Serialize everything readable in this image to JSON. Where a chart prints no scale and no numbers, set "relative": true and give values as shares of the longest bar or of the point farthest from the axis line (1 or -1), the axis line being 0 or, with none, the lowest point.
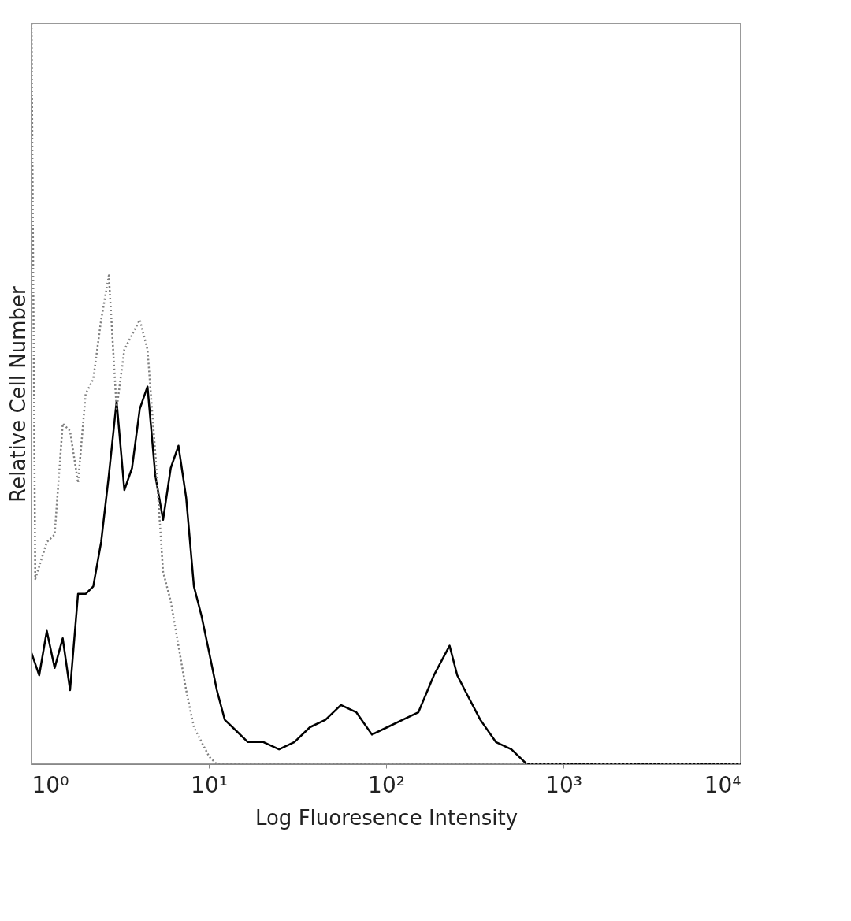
{
  "chart_data": {
    "type": "line",
    "relative": true,
    "xlabel": "Log Fluoresence Intensity",
    "ylabel": "Relative Cell Number",
    "log": "x",
    "xlim": [
      1,
      10000
    ],
    "xticks": [
      {
        "value": 1,
        "label": "10⁰"
      },
      {
        "value": 10,
        "label": "10¹"
      },
      {
        "value": 100,
        "label": "10²"
      },
      {
        "value": 1000,
        "label": "10³"
      },
      {
        "value": 10000,
        "label": "10⁴"
      }
    ],
    "grid": false,
    "marker": "none",
    "series": [
      {
        "color": "#000000",
        "line_style": "solid",
        "x": [
          1.0,
          1.105,
          1.22,
          1.35,
          1.5,
          1.65,
          1.83,
          2.02,
          2.23,
          2.47,
          2.73,
          3.02,
          3.34,
          3.69,
          4.08,
          4.51,
          4.99,
          5.52,
          6.1,
          6.74,
          7.45,
          8.24,
          9.1,
          10.06,
          11.1,
          12.3,
          13.6,
          16.6,
          20.3,
          24.9,
          30.4,
          37.2,
          45.5,
          55.6,
          68,
          83.2,
          101.7,
          124,
          152,
          186,
          228,
          252,
          278,
          340,
          416,
          509,
          622,
          688,
          1137,
          10000
        ],
        "values": [
          0.15,
          0.12,
          0.18,
          0.13,
          0.17,
          0.1,
          0.23,
          0.23,
          0.24,
          0.3,
          0.39,
          0.49,
          0.37,
          0.4,
          0.48,
          0.51,
          0.39,
          0.33,
          0.4,
          0.43,
          0.36,
          0.24,
          0.2,
          0.15,
          0.1,
          0.06,
          0.05,
          0.03,
          0.03,
          0.02,
          0.03,
          0.05,
          0.06,
          0.08,
          0.07,
          0.04,
          0.05,
          0.06,
          0.07,
          0.12,
          0.16,
          0.12,
          0.1,
          0.06,
          0.03,
          0.02,
          0.0,
          0.0,
          0.0,
          0.0
        ]
      },
      {
        "color": "#808080",
        "line_style": "dotted",
        "x": [
          1.0,
          1.05,
          1.22,
          1.35,
          1.5,
          1.65,
          1.83,
          2.02,
          2.23,
          2.47,
          2.73,
          3.02,
          3.34,
          3.69,
          4.08,
          4.51,
          4.99,
          5.52,
          6.1,
          6.74,
          7.45,
          8.24,
          9.1,
          10.06,
          11.1,
          10000
        ],
        "values": [
          1.0,
          0.25,
          0.3,
          0.31,
          0.46,
          0.45,
          0.38,
          0.5,
          0.52,
          0.6,
          0.66,
          0.48,
          0.56,
          0.58,
          0.6,
          0.56,
          0.42,
          0.26,
          0.22,
          0.16,
          0.1,
          0.05,
          0.03,
          0.01,
          0.0,
          0.0
        ]
      }
    ]
  }
}
